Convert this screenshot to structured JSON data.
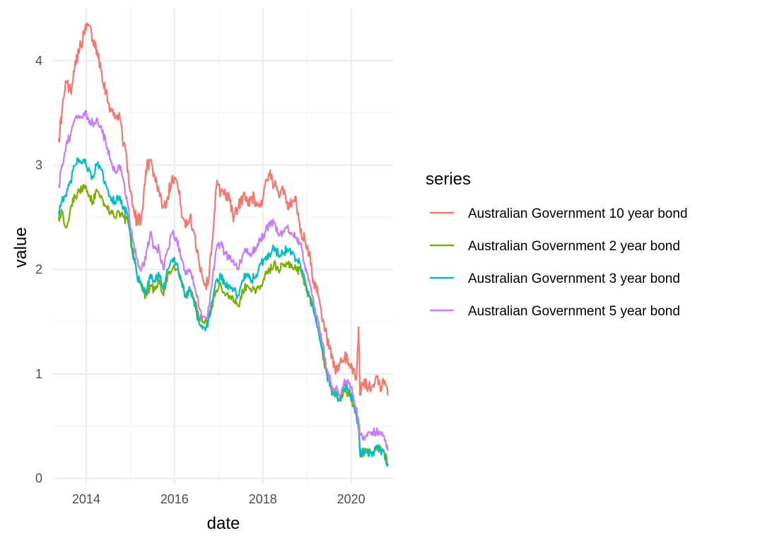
{
  "chart_data": {
    "type": "line",
    "title": "",
    "xlabel": "date",
    "ylabel": "value",
    "xlim": [
      2013.25,
      2020.95
    ],
    "ylim": [
      -0.05,
      4.5
    ],
    "x_ticks": [
      2014,
      2016,
      2018,
      2020
    ],
    "x_tick_labels": [
      "2014",
      "2016",
      "2018",
      "2020"
    ],
    "y_ticks": [
      0,
      1,
      2,
      3,
      4
    ],
    "y_tick_labels": [
      "0",
      "1",
      "2",
      "3",
      "4"
    ],
    "legend_title": "series",
    "legend_position": "right",
    "grid": true,
    "series": [
      {
        "name": "Australian Government 10 year bond",
        "color": "#F8766D",
        "x": [
          2013.38,
          2013.45,
          2013.55,
          2013.65,
          2013.75,
          2013.85,
          2013.95,
          2014.05,
          2014.15,
          2014.25,
          2014.35,
          2014.45,
          2014.55,
          2014.65,
          2014.75,
          2014.85,
          2014.95,
          2015.05,
          2015.15,
          2015.25,
          2015.35,
          2015.45,
          2015.55,
          2015.65,
          2015.75,
          2015.85,
          2015.95,
          2016.05,
          2016.15,
          2016.25,
          2016.35,
          2016.45,
          2016.55,
          2016.65,
          2016.75,
          2016.85,
          2016.95,
          2017.05,
          2017.15,
          2017.25,
          2017.35,
          2017.45,
          2017.55,
          2017.65,
          2017.75,
          2017.85,
          2017.95,
          2018.05,
          2018.15,
          2018.25,
          2018.35,
          2018.45,
          2018.55,
          2018.65,
          2018.75,
          2018.85,
          2018.95,
          2019.05,
          2019.15,
          2019.25,
          2019.35,
          2019.45,
          2019.55,
          2019.65,
          2019.75,
          2019.85,
          2019.95,
          2020.05,
          2020.12,
          2020.17,
          2020.2,
          2020.25,
          2020.35,
          2020.45,
          2020.55,
          2020.65,
          2020.75,
          2020.83
        ],
        "values": [
          3.25,
          3.5,
          3.8,
          3.7,
          4.0,
          4.1,
          4.25,
          4.35,
          4.2,
          4.1,
          3.9,
          3.7,
          3.55,
          3.45,
          3.5,
          3.2,
          2.95,
          2.6,
          2.45,
          2.5,
          2.95,
          3.05,
          2.9,
          2.75,
          2.6,
          2.7,
          2.9,
          2.85,
          2.6,
          2.4,
          2.5,
          2.35,
          2.1,
          1.9,
          1.85,
          2.25,
          2.8,
          2.75,
          2.75,
          2.65,
          2.5,
          2.6,
          2.7,
          2.65,
          2.7,
          2.65,
          2.6,
          2.8,
          2.9,
          2.8,
          2.75,
          2.8,
          2.65,
          2.6,
          2.7,
          2.35,
          2.3,
          2.15,
          1.9,
          1.75,
          1.5,
          1.35,
          1.15,
          1.0,
          1.1,
          1.15,
          1.1,
          1.05,
          0.95,
          1.45,
          0.8,
          0.9,
          0.9,
          0.85,
          0.95,
          0.9,
          0.9,
          0.8
        ]
      },
      {
        "name": "Australian Government 2 year bond",
        "color": "#7CAE00",
        "x": [
          2013.38,
          2013.45,
          2013.55,
          2013.65,
          2013.75,
          2013.85,
          2013.95,
          2014.05,
          2014.15,
          2014.25,
          2014.35,
          2014.45,
          2014.55,
          2014.65,
          2014.75,
          2014.85,
          2014.95,
          2015.05,
          2015.15,
          2015.25,
          2015.35,
          2015.45,
          2015.55,
          2015.65,
          2015.75,
          2015.85,
          2015.95,
          2016.05,
          2016.15,
          2016.25,
          2016.35,
          2016.45,
          2016.55,
          2016.65,
          2016.75,
          2016.85,
          2016.95,
          2017.05,
          2017.15,
          2017.25,
          2017.35,
          2017.45,
          2017.55,
          2017.65,
          2017.75,
          2017.85,
          2017.95,
          2018.05,
          2018.15,
          2018.25,
          2018.35,
          2018.45,
          2018.55,
          2018.65,
          2018.75,
          2018.85,
          2018.95,
          2019.05,
          2019.15,
          2019.25,
          2019.35,
          2019.45,
          2019.55,
          2019.65,
          2019.75,
          2019.85,
          2019.95,
          2020.05,
          2020.12,
          2020.17,
          2020.2,
          2020.25,
          2020.35,
          2020.45,
          2020.55,
          2020.65,
          2020.75,
          2020.83
        ],
        "values": [
          2.5,
          2.55,
          2.4,
          2.6,
          2.7,
          2.75,
          2.8,
          2.7,
          2.65,
          2.75,
          2.7,
          2.6,
          2.55,
          2.5,
          2.55,
          2.5,
          2.45,
          2.15,
          1.95,
          1.85,
          1.75,
          1.85,
          1.8,
          1.9,
          1.75,
          1.95,
          2.0,
          2.0,
          1.9,
          1.75,
          1.8,
          1.7,
          1.55,
          1.5,
          1.5,
          1.65,
          1.8,
          1.85,
          1.75,
          1.75,
          1.7,
          1.65,
          1.8,
          1.85,
          1.8,
          1.8,
          1.85,
          1.95,
          2.0,
          2.05,
          2.0,
          2.05,
          2.05,
          2.05,
          2.0,
          2.0,
          1.85,
          1.75,
          1.6,
          1.5,
          1.2,
          1.0,
          0.85,
          0.8,
          0.75,
          0.85,
          0.8,
          0.7,
          0.6,
          0.5,
          0.25,
          0.25,
          0.25,
          0.25,
          0.27,
          0.28,
          0.25,
          0.13
        ]
      },
      {
        "name": "Australian Government 3 year bond",
        "color": "#00BFC4",
        "x": [
          2013.38,
          2013.45,
          2013.55,
          2013.65,
          2013.75,
          2013.85,
          2013.95,
          2014.05,
          2014.15,
          2014.25,
          2014.35,
          2014.45,
          2014.55,
          2014.65,
          2014.75,
          2014.85,
          2014.95,
          2015.05,
          2015.15,
          2015.25,
          2015.35,
          2015.45,
          2015.55,
          2015.65,
          2015.75,
          2015.85,
          2015.95,
          2016.05,
          2016.15,
          2016.25,
          2016.35,
          2016.45,
          2016.55,
          2016.65,
          2016.75,
          2016.85,
          2016.95,
          2017.05,
          2017.15,
          2017.25,
          2017.35,
          2017.45,
          2017.55,
          2017.65,
          2017.75,
          2017.85,
          2017.95,
          2018.05,
          2018.15,
          2018.25,
          2018.35,
          2018.45,
          2018.55,
          2018.65,
          2018.75,
          2018.85,
          2018.95,
          2019.05,
          2019.15,
          2019.25,
          2019.35,
          2019.45,
          2019.55,
          2019.65,
          2019.75,
          2019.85,
          2019.95,
          2020.05,
          2020.12,
          2020.17,
          2020.2,
          2020.25,
          2020.35,
          2020.45,
          2020.55,
          2020.65,
          2020.75,
          2020.83
        ],
        "values": [
          2.55,
          2.65,
          2.7,
          2.85,
          3.0,
          3.05,
          3.05,
          2.95,
          2.9,
          3.0,
          2.95,
          2.8,
          2.7,
          2.65,
          2.7,
          2.6,
          2.5,
          2.2,
          1.95,
          1.85,
          1.75,
          1.95,
          1.9,
          1.95,
          1.8,
          2.0,
          2.1,
          2.05,
          1.9,
          1.75,
          1.8,
          1.65,
          1.5,
          1.45,
          1.45,
          1.7,
          1.9,
          1.95,
          1.85,
          1.85,
          1.8,
          1.75,
          1.9,
          1.95,
          1.9,
          1.95,
          2.05,
          2.1,
          2.15,
          2.2,
          2.15,
          2.15,
          2.2,
          2.15,
          2.1,
          2.05,
          1.9,
          1.75,
          1.6,
          1.45,
          1.25,
          1.0,
          0.85,
          0.8,
          0.75,
          0.9,
          0.85,
          0.75,
          0.6,
          0.5,
          0.25,
          0.25,
          0.25,
          0.25,
          0.27,
          0.28,
          0.25,
          0.12
        ]
      },
      {
        "name": "Australian Government 5 year bond",
        "color": "#C77CFF",
        "x": [
          2013.38,
          2013.45,
          2013.55,
          2013.65,
          2013.75,
          2013.85,
          2013.95,
          2014.05,
          2014.15,
          2014.25,
          2014.35,
          2014.45,
          2014.55,
          2014.65,
          2014.75,
          2014.85,
          2014.95,
          2015.05,
          2015.15,
          2015.25,
          2015.35,
          2015.45,
          2015.55,
          2015.65,
          2015.75,
          2015.85,
          2015.95,
          2016.05,
          2016.15,
          2016.25,
          2016.35,
          2016.45,
          2016.55,
          2016.65,
          2016.75,
          2016.85,
          2016.95,
          2017.05,
          2017.15,
          2017.25,
          2017.35,
          2017.45,
          2017.55,
          2017.65,
          2017.75,
          2017.85,
          2017.95,
          2018.05,
          2018.15,
          2018.25,
          2018.35,
          2018.45,
          2018.55,
          2018.65,
          2018.75,
          2018.85,
          2018.95,
          2019.05,
          2019.15,
          2019.25,
          2019.35,
          2019.45,
          2019.55,
          2019.65,
          2019.75,
          2019.85,
          2019.95,
          2020.05,
          2020.12,
          2020.17,
          2020.2,
          2020.25,
          2020.35,
          2020.45,
          2020.55,
          2020.65,
          2020.75,
          2020.83
        ],
        "values": [
          2.8,
          3.0,
          3.2,
          3.3,
          3.45,
          3.45,
          3.5,
          3.45,
          3.4,
          3.45,
          3.35,
          3.2,
          3.05,
          2.95,
          3.0,
          2.85,
          2.6,
          2.3,
          2.1,
          2.0,
          2.1,
          2.35,
          2.2,
          2.2,
          2.0,
          2.2,
          2.35,
          2.3,
          2.1,
          1.95,
          2.0,
          1.85,
          1.65,
          1.55,
          1.55,
          1.85,
          2.2,
          2.25,
          2.15,
          2.1,
          2.05,
          2.0,
          2.15,
          2.2,
          2.15,
          2.2,
          2.3,
          2.35,
          2.45,
          2.45,
          2.35,
          2.35,
          2.4,
          2.35,
          2.3,
          2.25,
          2.05,
          1.9,
          1.7,
          1.5,
          1.3,
          1.05,
          0.9,
          0.85,
          0.8,
          0.95,
          0.9,
          0.8,
          0.65,
          0.55,
          0.42,
          0.4,
          0.42,
          0.42,
          0.45,
          0.45,
          0.4,
          0.27
        ]
      }
    ]
  }
}
